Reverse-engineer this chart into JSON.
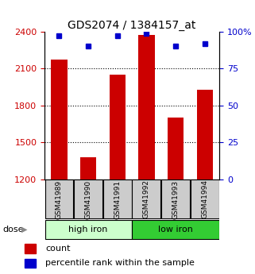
{
  "title": "GDS2074 / 1384157_at",
  "categories": [
    "GSM41989",
    "GSM41990",
    "GSM41991",
    "GSM41992",
    "GSM41993",
    "GSM41994"
  ],
  "bar_values": [
    2175,
    1380,
    2050,
    2370,
    1700,
    1930
  ],
  "percentile_values": [
    97,
    90,
    97,
    99,
    90,
    92
  ],
  "y_min": 1200,
  "y_max": 2400,
  "y_ticks": [
    1200,
    1500,
    1800,
    2100,
    2400
  ],
  "right_y_ticks": [
    0,
    25,
    50,
    75,
    100
  ],
  "bar_color": "#cc0000",
  "dot_color": "#0000cc",
  "group1_label": "high iron",
  "group2_label": "low iron",
  "group1_bg": "#ccffcc",
  "group2_bg": "#33cc33",
  "sample_bg": "#cccccc",
  "dose_label": "dose",
  "legend_count": "count",
  "legend_percentile": "percentile rank within the sample",
  "title_fontsize": 10,
  "tick_fontsize": 8,
  "bar_width": 0.55
}
